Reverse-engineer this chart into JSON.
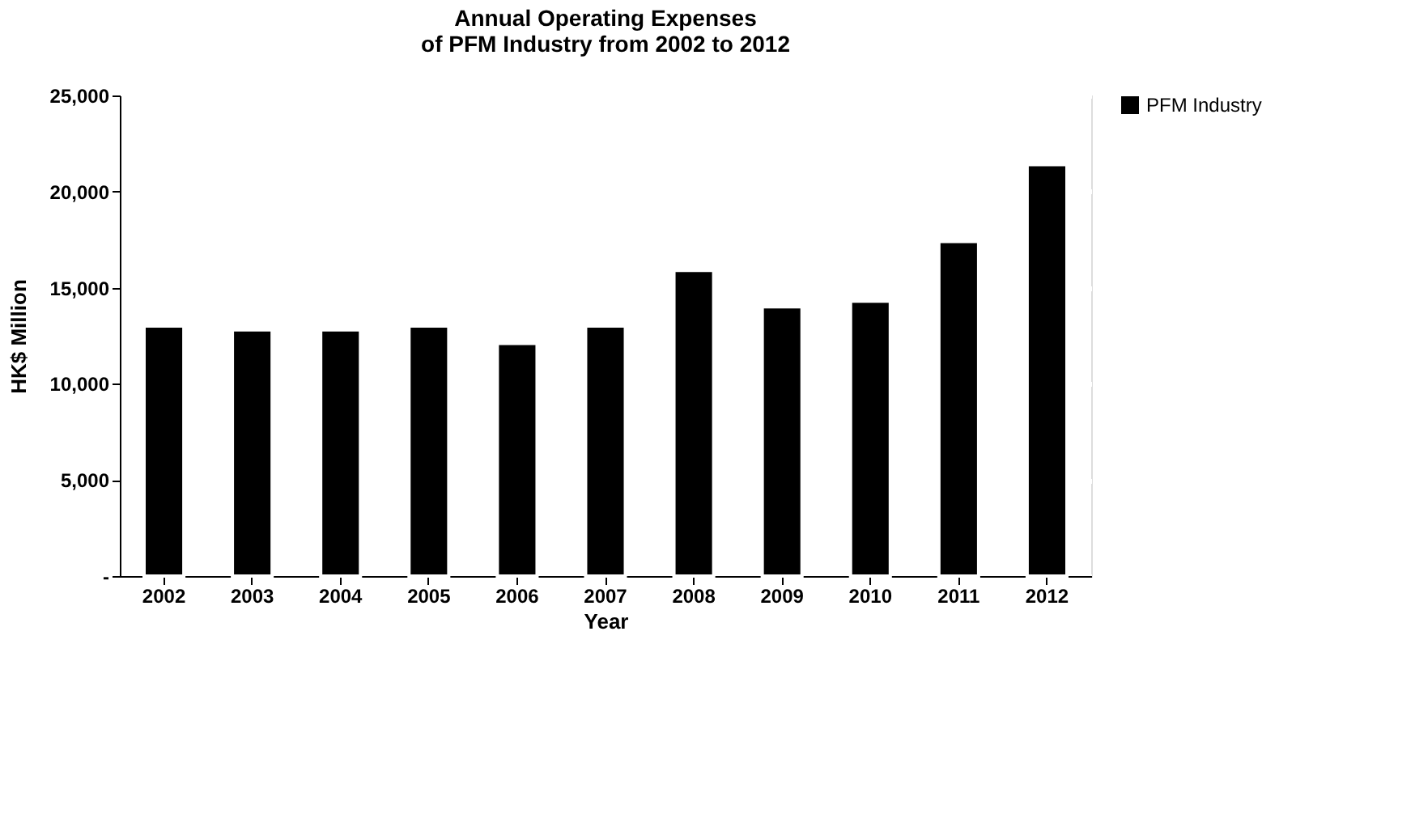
{
  "chart_data": {
    "type": "bar",
    "title": [
      "Annual Operating Expenses",
      "of PFM Industry from 2002 to 2012"
    ],
    "xlabel": "Year",
    "ylabel": "HK$ Million",
    "categories": [
      "2002",
      "2003",
      "2004",
      "2005",
      "2006",
      "2007",
      "2008",
      "2009",
      "2010",
      "2011",
      "2012"
    ],
    "series": [
      {
        "name": "PFM Industry",
        "color": "#000000",
        "values": [
          13000,
          12800,
          12800,
          13000,
          12100,
          13000,
          15900,
          14000,
          14300,
          17400,
          21400
        ]
      }
    ],
    "ylim": [
      0,
      25000
    ],
    "yticks": [
      {
        "value": 0,
        "label": "-"
      },
      {
        "value": 5000,
        "label": "5,000"
      },
      {
        "value": 10000,
        "label": "10,000"
      },
      {
        "value": 15000,
        "label": "15,000"
      },
      {
        "value": 20000,
        "label": "20,000"
      },
      {
        "value": 25000,
        "label": "25,000"
      }
    ],
    "grid": "y",
    "legend": "right"
  }
}
